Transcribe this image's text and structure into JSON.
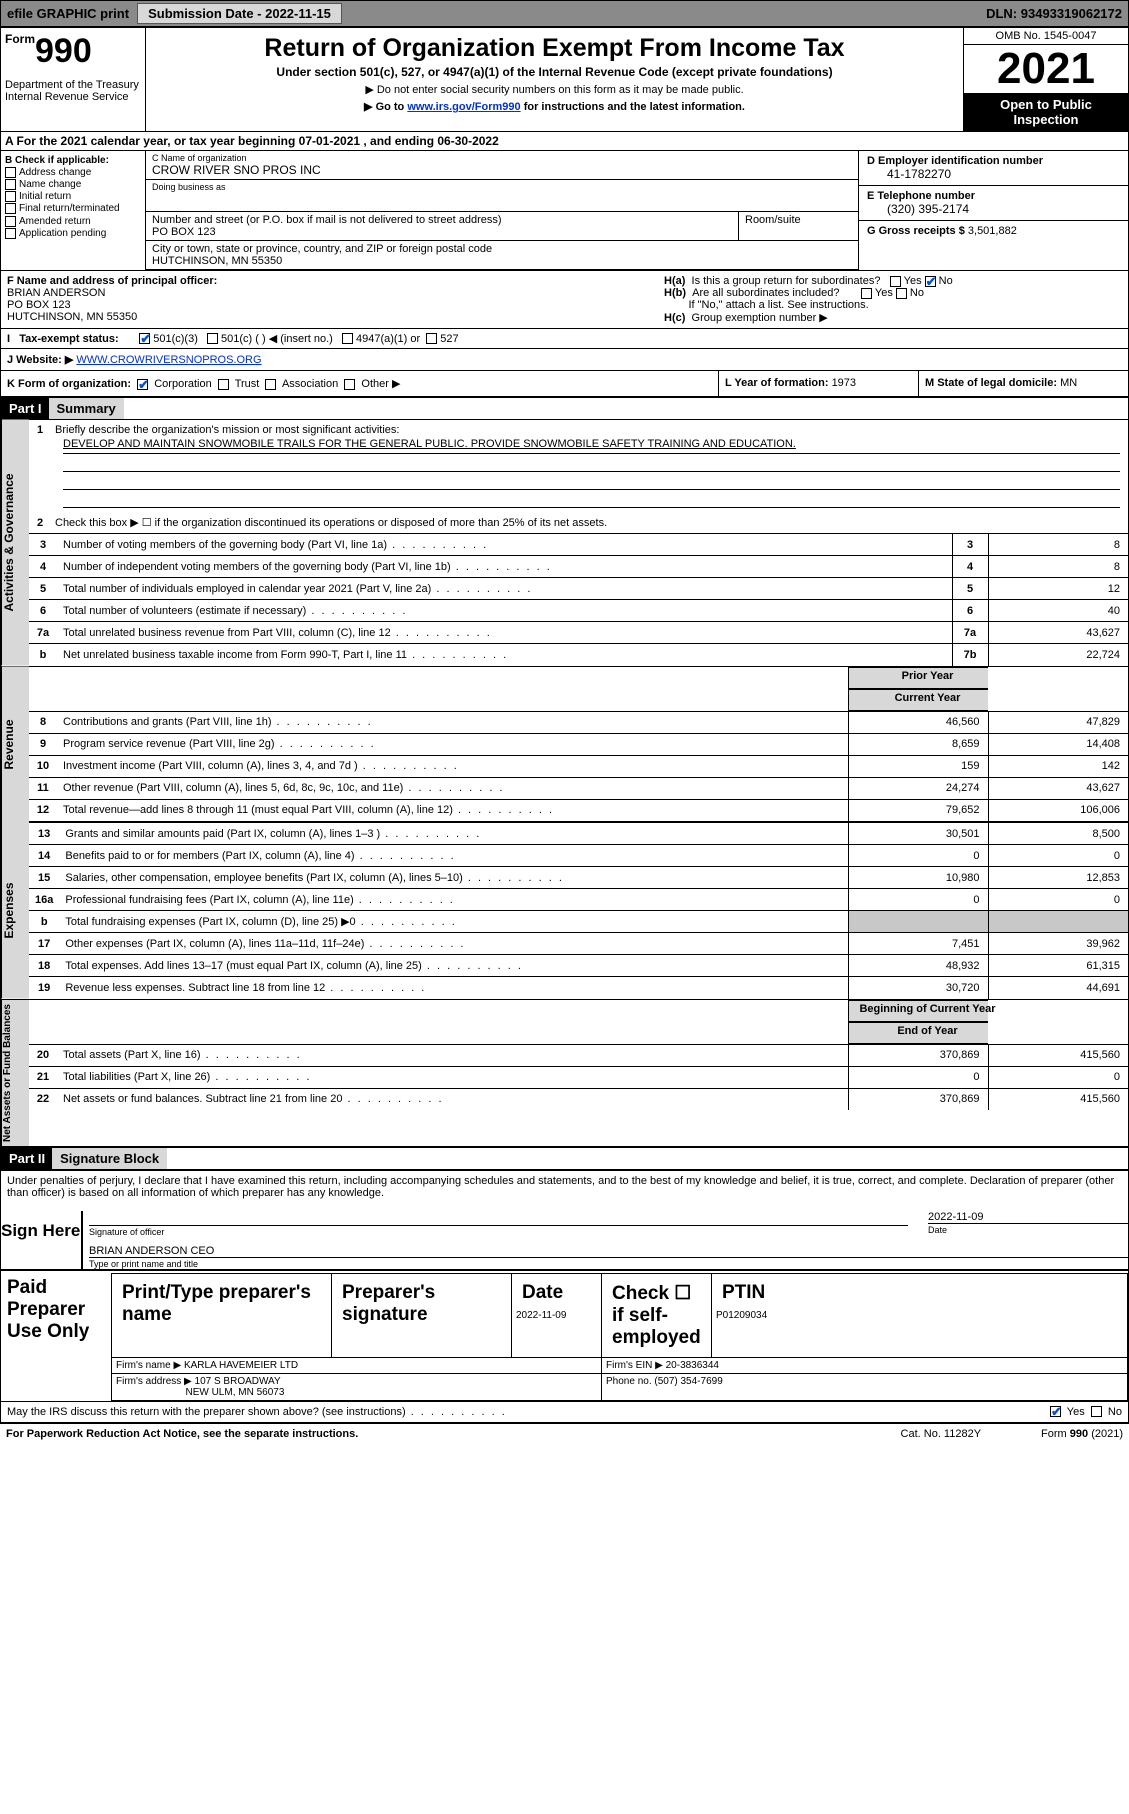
{
  "topbar": {
    "efile": "efile GRAPHIC print",
    "subdate_label": "Submission Date - ",
    "subdate": "2022-11-15",
    "dln_label": "DLN: ",
    "dln": "93493319062172"
  },
  "header": {
    "form_prefix": "Form",
    "form_num": "990",
    "dept": "Department of the Treasury\nInternal Revenue Service",
    "title": "Return of Organization Exempt From Income Tax",
    "sub": "Under section 501(c), 527, or 4947(a)(1) of the Internal Revenue Code (except private foundations)",
    "note1": "▶ Do not enter social security numbers on this form as it may be made public.",
    "note2_a": "▶ Go to ",
    "note2_link": "www.irs.gov/Form990",
    "note2_b": " for instructions and the latest information.",
    "omb": "OMB No. 1545-0047",
    "year": "2021",
    "inspect": "Open to Public Inspection"
  },
  "row_a": "A For the 2021 calendar year, or tax year beginning 07-01-2021   , and ending 06-30-2022",
  "section_b": {
    "label": "B Check if applicable:",
    "items": [
      "Address change",
      "Name change",
      "Initial return",
      "Final return/terminated",
      "Amended return",
      "Application pending"
    ]
  },
  "section_c": {
    "name_lab": "C Name of organization",
    "name": "CROW RIVER SNO PROS INC",
    "dba_lab": "Doing business as",
    "dba": "",
    "street_lab": "Number and street (or P.O. box if mail is not delivered to street address)",
    "room_lab": "Room/suite",
    "street": "PO BOX 123",
    "city_lab": "City or town, state or province, country, and ZIP or foreign postal code",
    "city": "HUTCHINSON, MN  55350"
  },
  "section_d": {
    "lab": "D Employer identification number",
    "val": "41-1782270"
  },
  "section_e": {
    "lab": "E Telephone number",
    "val": "(320) 395-2174"
  },
  "section_g": {
    "lab": "G Gross receipts $ ",
    "val": "3,501,882"
  },
  "section_f": {
    "lab": "F Name and address of principal officer:",
    "name": "BRIAN ANDERSON",
    "addr1": "PO BOX 123",
    "addr2": "HUTCHINSON, MN  55350"
  },
  "section_h": {
    "ha": "Is this a group return for subordinates?",
    "hb": "Are all subordinates included?",
    "hb_note": "If \"No,\" attach a list. See instructions.",
    "hc": "Group exemption number ▶"
  },
  "tax_status": {
    "lab": "Tax-exempt status:",
    "opt1": "501(c)(3)",
    "opt2": "501(c) (  ) ◀ (insert no.)",
    "opt3": "4947(a)(1) or",
    "opt4": "527"
  },
  "section_j": {
    "lab": "J   Website: ▶ ",
    "val": "WWW.CROWRIVERSNOPROS.ORG"
  },
  "section_k": {
    "lab": "K Form of organization:",
    "opts": [
      "Corporation",
      "Trust",
      "Association",
      "Other ▶"
    ]
  },
  "section_l": {
    "lab": "L Year of formation: ",
    "val": "1973"
  },
  "section_m": {
    "lab": "M State of legal domicile: ",
    "val": "MN"
  },
  "part1": {
    "hdr": "Part I",
    "title": "Summary",
    "vlabels": [
      "Activities & Governance",
      "Revenue",
      "Expenses",
      "Net Assets or Fund Balances"
    ],
    "q1": "Briefly describe the organization's mission or most significant activities:",
    "q1_text": "DEVELOP AND MAINTAIN SNOWMOBILE TRAILS FOR THE GENERAL PUBLIC. PROVIDE SNOWMOBILE SAFETY TRAINING AND EDUCATION.",
    "q2": "Check this box ▶ ☐  if the organization discontinued its operations or disposed of more than 25% of its net assets.",
    "rows_ag": [
      {
        "n": "3",
        "t": "Number of voting members of the governing body (Part VI, line 1a)",
        "box": "3",
        "v": "8"
      },
      {
        "n": "4",
        "t": "Number of independent voting members of the governing body (Part VI, line 1b)",
        "box": "4",
        "v": "8"
      },
      {
        "n": "5",
        "t": "Total number of individuals employed in calendar year 2021 (Part V, line 2a)",
        "box": "5",
        "v": "12"
      },
      {
        "n": "6",
        "t": "Total number of volunteers (estimate if necessary)",
        "box": "6",
        "v": "40"
      },
      {
        "n": "7a",
        "t": "Total unrelated business revenue from Part VIII, column (C), line 12",
        "box": "7a",
        "v": "43,627"
      },
      {
        "n": "b",
        "t": "Net unrelated business taxable income from Form 990-T, Part I, line 11",
        "box": "7b",
        "v": "22,724"
      }
    ],
    "col_hdrs": [
      "Prior Year",
      "Current Year"
    ],
    "rows_rev": [
      {
        "n": "8",
        "t": "Contributions and grants (Part VIII, line 1h)",
        "p": "46,560",
        "c": "47,829"
      },
      {
        "n": "9",
        "t": "Program service revenue (Part VIII, line 2g)",
        "p": "8,659",
        "c": "14,408"
      },
      {
        "n": "10",
        "t": "Investment income (Part VIII, column (A), lines 3, 4, and 7d )",
        "p": "159",
        "c": "142"
      },
      {
        "n": "11",
        "t": "Other revenue (Part VIII, column (A), lines 5, 6d, 8c, 9c, 10c, and 11e)",
        "p": "24,274",
        "c": "43,627"
      },
      {
        "n": "12",
        "t": "Total revenue—add lines 8 through 11 (must equal Part VIII, column (A), line 12)",
        "p": "79,652",
        "c": "106,006"
      }
    ],
    "rows_exp": [
      {
        "n": "13",
        "t": "Grants and similar amounts paid (Part IX, column (A), lines 1–3 )",
        "p": "30,501",
        "c": "8,500"
      },
      {
        "n": "14",
        "t": "Benefits paid to or for members (Part IX, column (A), line 4)",
        "p": "0",
        "c": "0"
      },
      {
        "n": "15",
        "t": "Salaries, other compensation, employee benefits (Part IX, column (A), lines 5–10)",
        "p": "10,980",
        "c": "12,853"
      },
      {
        "n": "16a",
        "t": "Professional fundraising fees (Part IX, column (A), line 11e)",
        "p": "0",
        "c": "0"
      },
      {
        "n": "b",
        "t": "Total fundraising expenses (Part IX, column (D), line 25) ▶0",
        "p": "grey",
        "c": "grey"
      },
      {
        "n": "17",
        "t": "Other expenses (Part IX, column (A), lines 11a–11d, 11f–24e)",
        "p": "7,451",
        "c": "39,962"
      },
      {
        "n": "18",
        "t": "Total expenses. Add lines 13–17 (must equal Part IX, column (A), line 25)",
        "p": "48,932",
        "c": "61,315"
      },
      {
        "n": "19",
        "t": "Revenue less expenses. Subtract line 18 from line 12",
        "p": "30,720",
        "c": "44,691"
      }
    ],
    "col_hdrs2": [
      "Beginning of Current Year",
      "End of Year"
    ],
    "rows_net": [
      {
        "n": "20",
        "t": "Total assets (Part X, line 16)",
        "p": "370,869",
        "c": "415,560"
      },
      {
        "n": "21",
        "t": "Total liabilities (Part X, line 26)",
        "p": "0",
        "c": "0"
      },
      {
        "n": "22",
        "t": "Net assets or fund balances. Subtract line 21 from line 20",
        "p": "370,869",
        "c": "415,560"
      }
    ]
  },
  "part2": {
    "hdr": "Part II",
    "title": "Signature Block",
    "decl": "Under penalties of perjury, I declare that I have examined this return, including accompanying schedules and statements, and to the best of my knowledge and belief, it is true, correct, and complete. Declaration of preparer (other than officer) is based on all information of which preparer has any knowledge.",
    "sign_here": "Sign Here",
    "sig_officer": "Signature of officer",
    "sig_date": "2022-11-09",
    "date_lab": "Date",
    "officer_name": "BRIAN ANDERSON CEO",
    "officer_lab": "Type or print name and title",
    "paid": "Paid Preparer Use Only",
    "prep_cols": [
      "Print/Type preparer's name",
      "Preparer's signature",
      "Date",
      "Check ☐ if self-employed",
      "PTIN"
    ],
    "prep_date": "2022-11-09",
    "prep_ptin": "P01209034",
    "firm_name_lab": "Firm's name    ▶ ",
    "firm_name": "KARLA HAVEMEIER LTD",
    "firm_ein_lab": "Firm's EIN ▶ ",
    "firm_ein": "20-3836344",
    "firm_addr_lab": "Firm's address ▶ ",
    "firm_addr1": "107 S BROADWAY",
    "firm_addr2": "NEW ULM, MN  56073",
    "firm_phone_lab": "Phone no. ",
    "firm_phone": "(507) 354-7699",
    "may_irs": "May the IRS discuss this return with the preparer shown above? (see instructions)"
  },
  "footer": {
    "l": "For Paperwork Reduction Act Notice, see the separate instructions.",
    "m": "Cat. No. 11282Y",
    "r": "Form 990 (2021)"
  }
}
